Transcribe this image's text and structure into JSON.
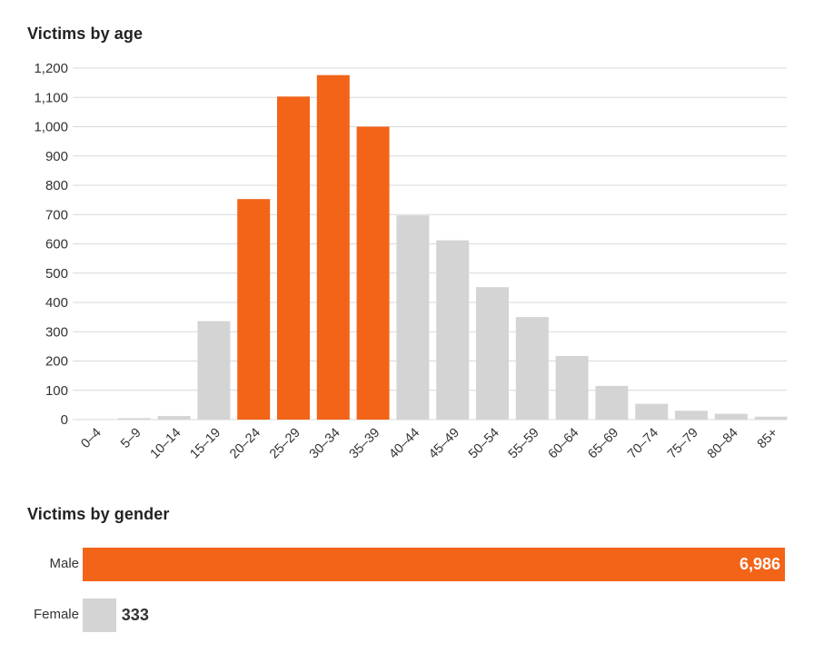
{
  "chart_data": [
    {
      "type": "bar",
      "title": "Victims by age",
      "categories": [
        "0–4",
        "5–9",
        "10–14",
        "15–19",
        "20–24",
        "25–29",
        "30–34",
        "35–39",
        "40–44",
        "45–49",
        "50–54",
        "55–59",
        "60–64",
        "65–69",
        "70–74",
        "75–79",
        "80–84",
        "85+"
      ],
      "values": [
        2,
        5,
        12,
        336,
        753,
        1103,
        1176,
        1000,
        697,
        612,
        452,
        350,
        217,
        115,
        54,
        30,
        20,
        10
      ],
      "highlighted": [
        "20–24",
        "25–29",
        "30–34",
        "35–39"
      ],
      "ylim": [
        0,
        1200
      ],
      "yticks": [
        0,
        100,
        200,
        300,
        400,
        500,
        600,
        700,
        800,
        900,
        1000,
        1100,
        1200
      ],
      "ytick_labels": [
        "0",
        "100",
        "200",
        "300",
        "400",
        "500",
        "600",
        "700",
        "800",
        "900",
        "1,000",
        "1,100",
        "1,200"
      ],
      "grid": true,
      "xlabel": "",
      "ylabel": ""
    },
    {
      "type": "bar",
      "orientation": "horizontal",
      "title": "Victims by gender",
      "categories": [
        "Male",
        "Female"
      ],
      "values": [
        6986,
        333
      ],
      "value_labels": [
        "6,986",
        "333"
      ]
    }
  ],
  "colors": {
    "highlight": "#f26418",
    "base": "#d4d4d4",
    "grid": "#d9d9d9",
    "text": "#222222",
    "value_on_bar": "#ffffff",
    "value_outside": "#333333"
  }
}
